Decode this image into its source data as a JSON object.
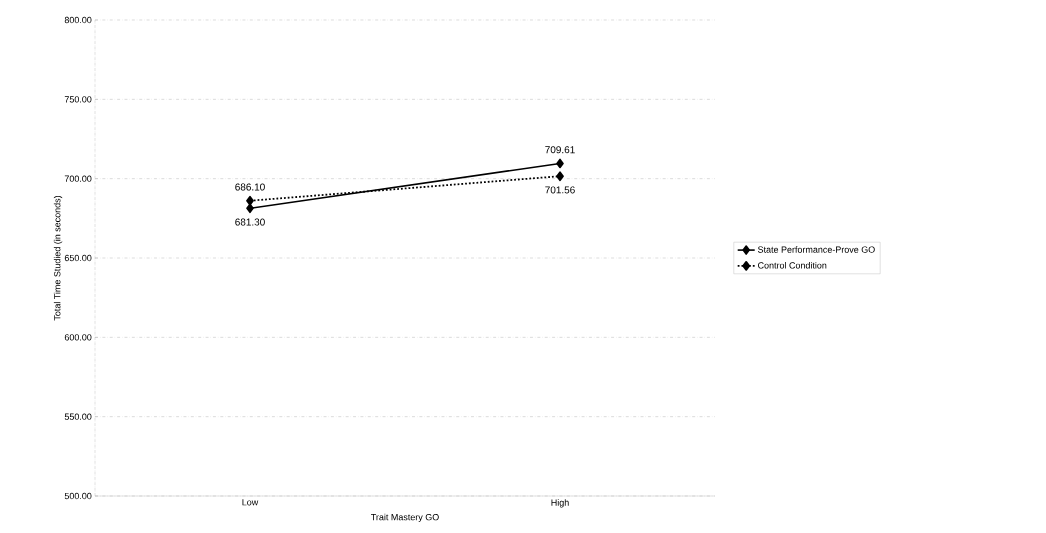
{
  "chart_data": {
    "type": "line",
    "xlabel": "Trait Mastery GO",
    "ylabel": "Total Time Studied (in seconds)",
    "categories": [
      "Low",
      "High"
    ],
    "series": [
      {
        "name": "State Performance-Prove GO",
        "color": "#000000",
        "values": [
          681.3,
          709.61
        ],
        "value_labels": [
          "681.30",
          "709.61"
        ],
        "line_style": "solid"
      },
      {
        "name": "Control Condition",
        "color": "#000000",
        "values": [
          686.1,
          701.56
        ],
        "value_labels": [
          "686.10",
          "701.56"
        ],
        "line_style": "dotted"
      }
    ],
    "ylim": [
      500,
      800
    ],
    "yticks": [
      {
        "value": 500,
        "label": "500.00"
      },
      {
        "value": 550,
        "label": "550.00"
      },
      {
        "value": 600,
        "label": "600.00"
      },
      {
        "value": 650,
        "label": "650.00"
      },
      {
        "value": 700,
        "label": "700.00"
      },
      {
        "value": 750,
        "label": "750.00"
      },
      {
        "value": 800,
        "label": "800.00"
      }
    ],
    "grid": "y",
    "legend": "right",
    "marker": "diamond"
  }
}
